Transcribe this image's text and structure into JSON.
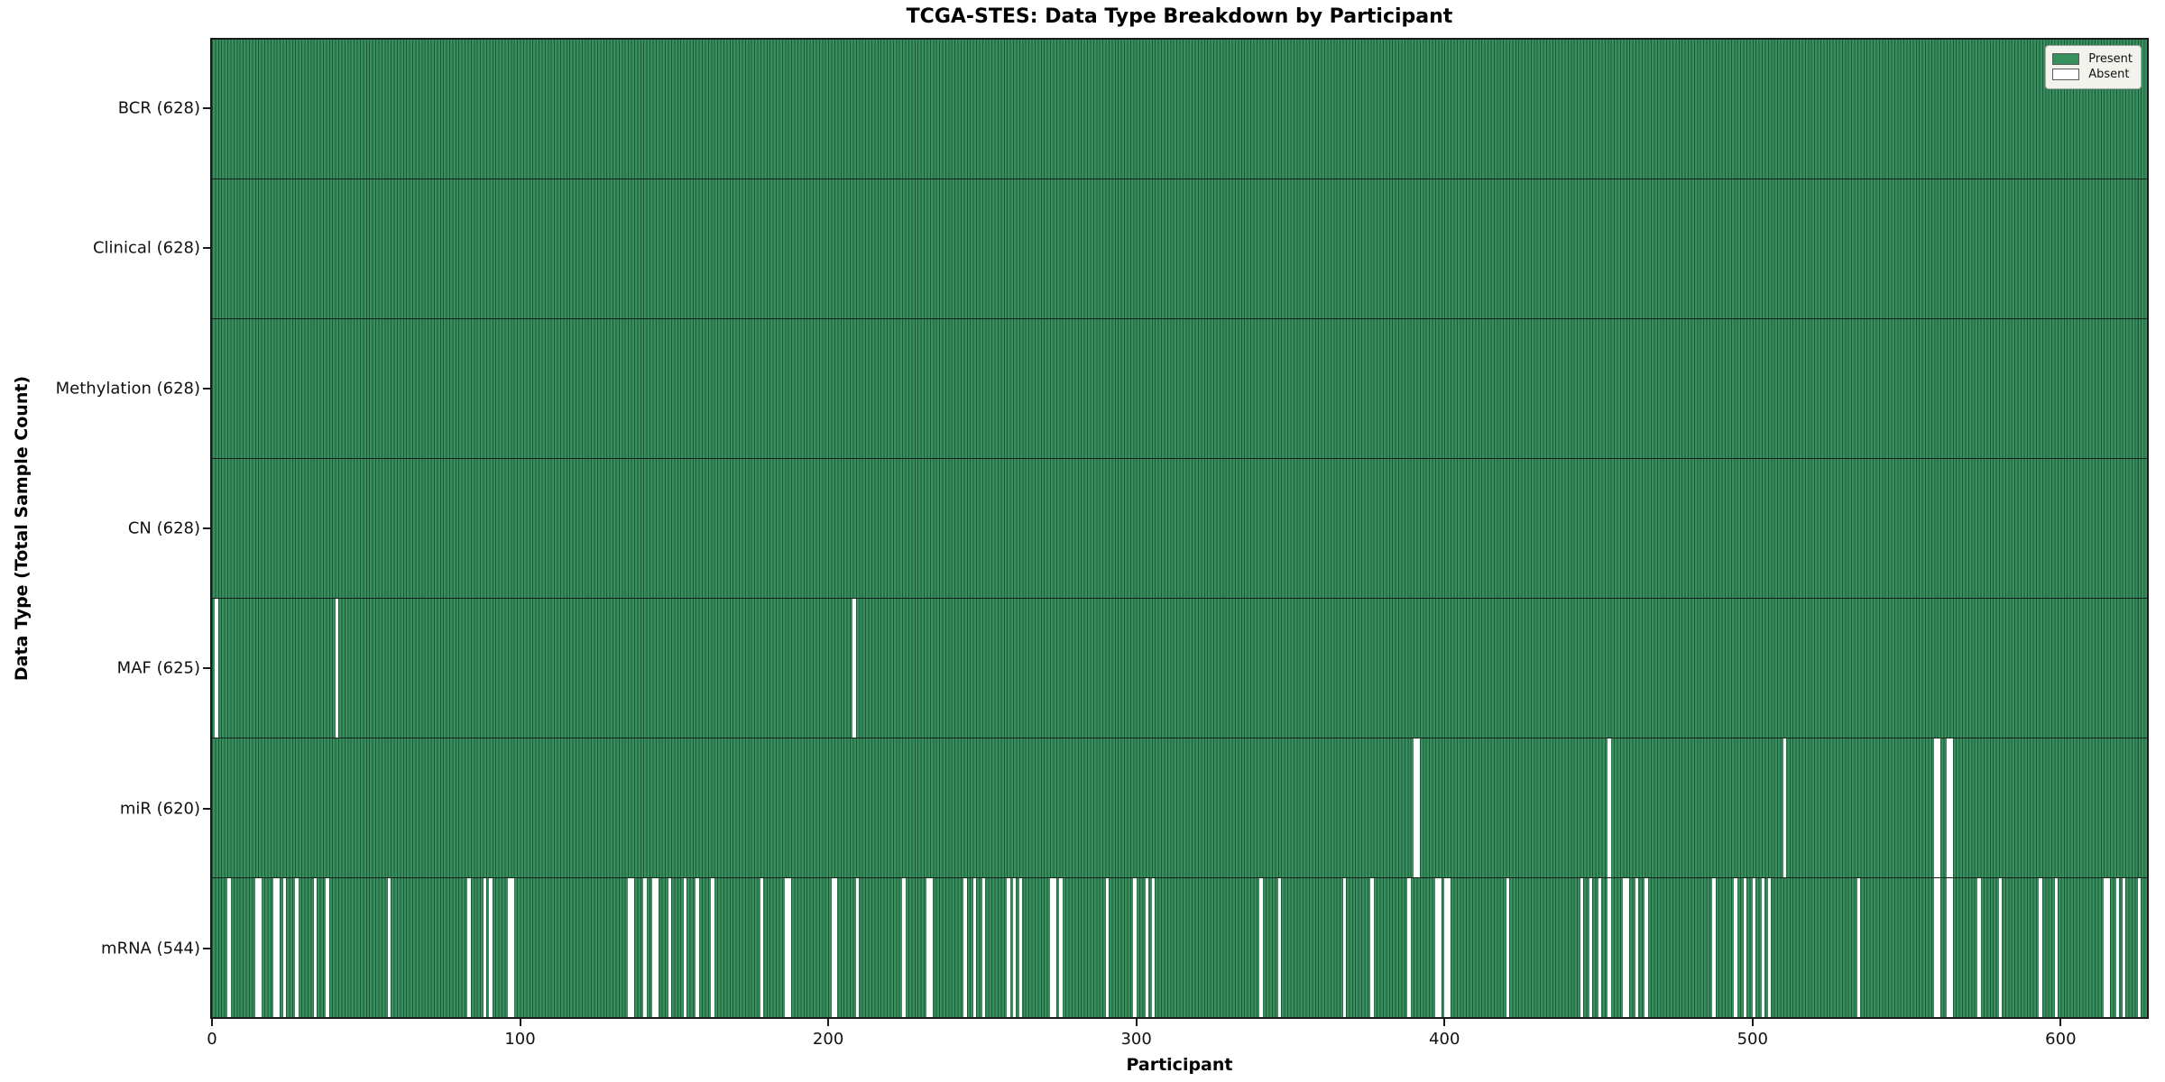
{
  "figure": {
    "title": "TCGA-STES: Data Type Breakdown by Participant",
    "xlabel": "Participant",
    "ylabel": "Data Type (Total Sample Count)"
  },
  "legend": {
    "present_label": "Present",
    "absent_label": "Absent"
  },
  "colors": {
    "present_green": "#38905f",
    "absent_white": "#ffffff",
    "bar_edge": "rgba(10,42,26,0.55)",
    "plot_border": "#1a1a1a",
    "legend_bg": "#f3f3ed"
  },
  "chart_data": {
    "type": "heatmap",
    "title": "TCGA-STES: Data Type Breakdown by Participant",
    "xlabel": "Participant",
    "ylabel": "Data Type (Total Sample Count)",
    "legend_entries": [
      {
        "label": "Present",
        "color": "#38905f"
      },
      {
        "label": "Absent",
        "color": "#ffffff"
      }
    ],
    "legend_position": "top-right",
    "x_axis": {
      "min": 0,
      "max": 628,
      "ticks": [
        0,
        100,
        200,
        300,
        400,
        500,
        600
      ]
    },
    "n_participants": 628,
    "rows": [
      {
        "label": "BCR (628)",
        "data_type": "BCR",
        "present_count": 628,
        "absent_participants": []
      },
      {
        "label": "Clinical (628)",
        "data_type": "Clinical",
        "present_count": 628,
        "absent_participants": []
      },
      {
        "label": "Methylation (628)",
        "data_type": "Methylation",
        "present_count": 628,
        "absent_participants": []
      },
      {
        "label": "CN (628)",
        "data_type": "CN",
        "present_count": 628,
        "absent_participants": []
      },
      {
        "label": "MAF (625)",
        "data_type": "MAF",
        "present_count": 625,
        "absent_participants": [
          1,
          40,
          208
        ]
      },
      {
        "label": "miR (620)",
        "data_type": "miR",
        "present_count": 620,
        "absent_participants": [
          390,
          391,
          453,
          510,
          559,
          560,
          563,
          564
        ]
      },
      {
        "label": "mRNA (544)",
        "data_type": "mRNA",
        "present_count": 544,
        "absent_participants": [
          5,
          14,
          15,
          20,
          21,
          23,
          27,
          33,
          37,
          57,
          83,
          88,
          90,
          96,
          97,
          135,
          136,
          140,
          143,
          144,
          148,
          153,
          157,
          162,
          178,
          186,
          187,
          201,
          202,
          209,
          224,
          232,
          233,
          244,
          247,
          250,
          258,
          260,
          262,
          272,
          273,
          275,
          290,
          299,
          303,
          305,
          340,
          346,
          367,
          376,
          388,
          397,
          398,
          400,
          401,
          420,
          444,
          447,
          450,
          453,
          458,
          459,
          462,
          465,
          487,
          494,
          497,
          500,
          503,
          505,
          534,
          559,
          560,
          563,
          564,
          573,
          580,
          593,
          598,
          614,
          615,
          618,
          620,
          625
        ]
      }
    ]
  }
}
